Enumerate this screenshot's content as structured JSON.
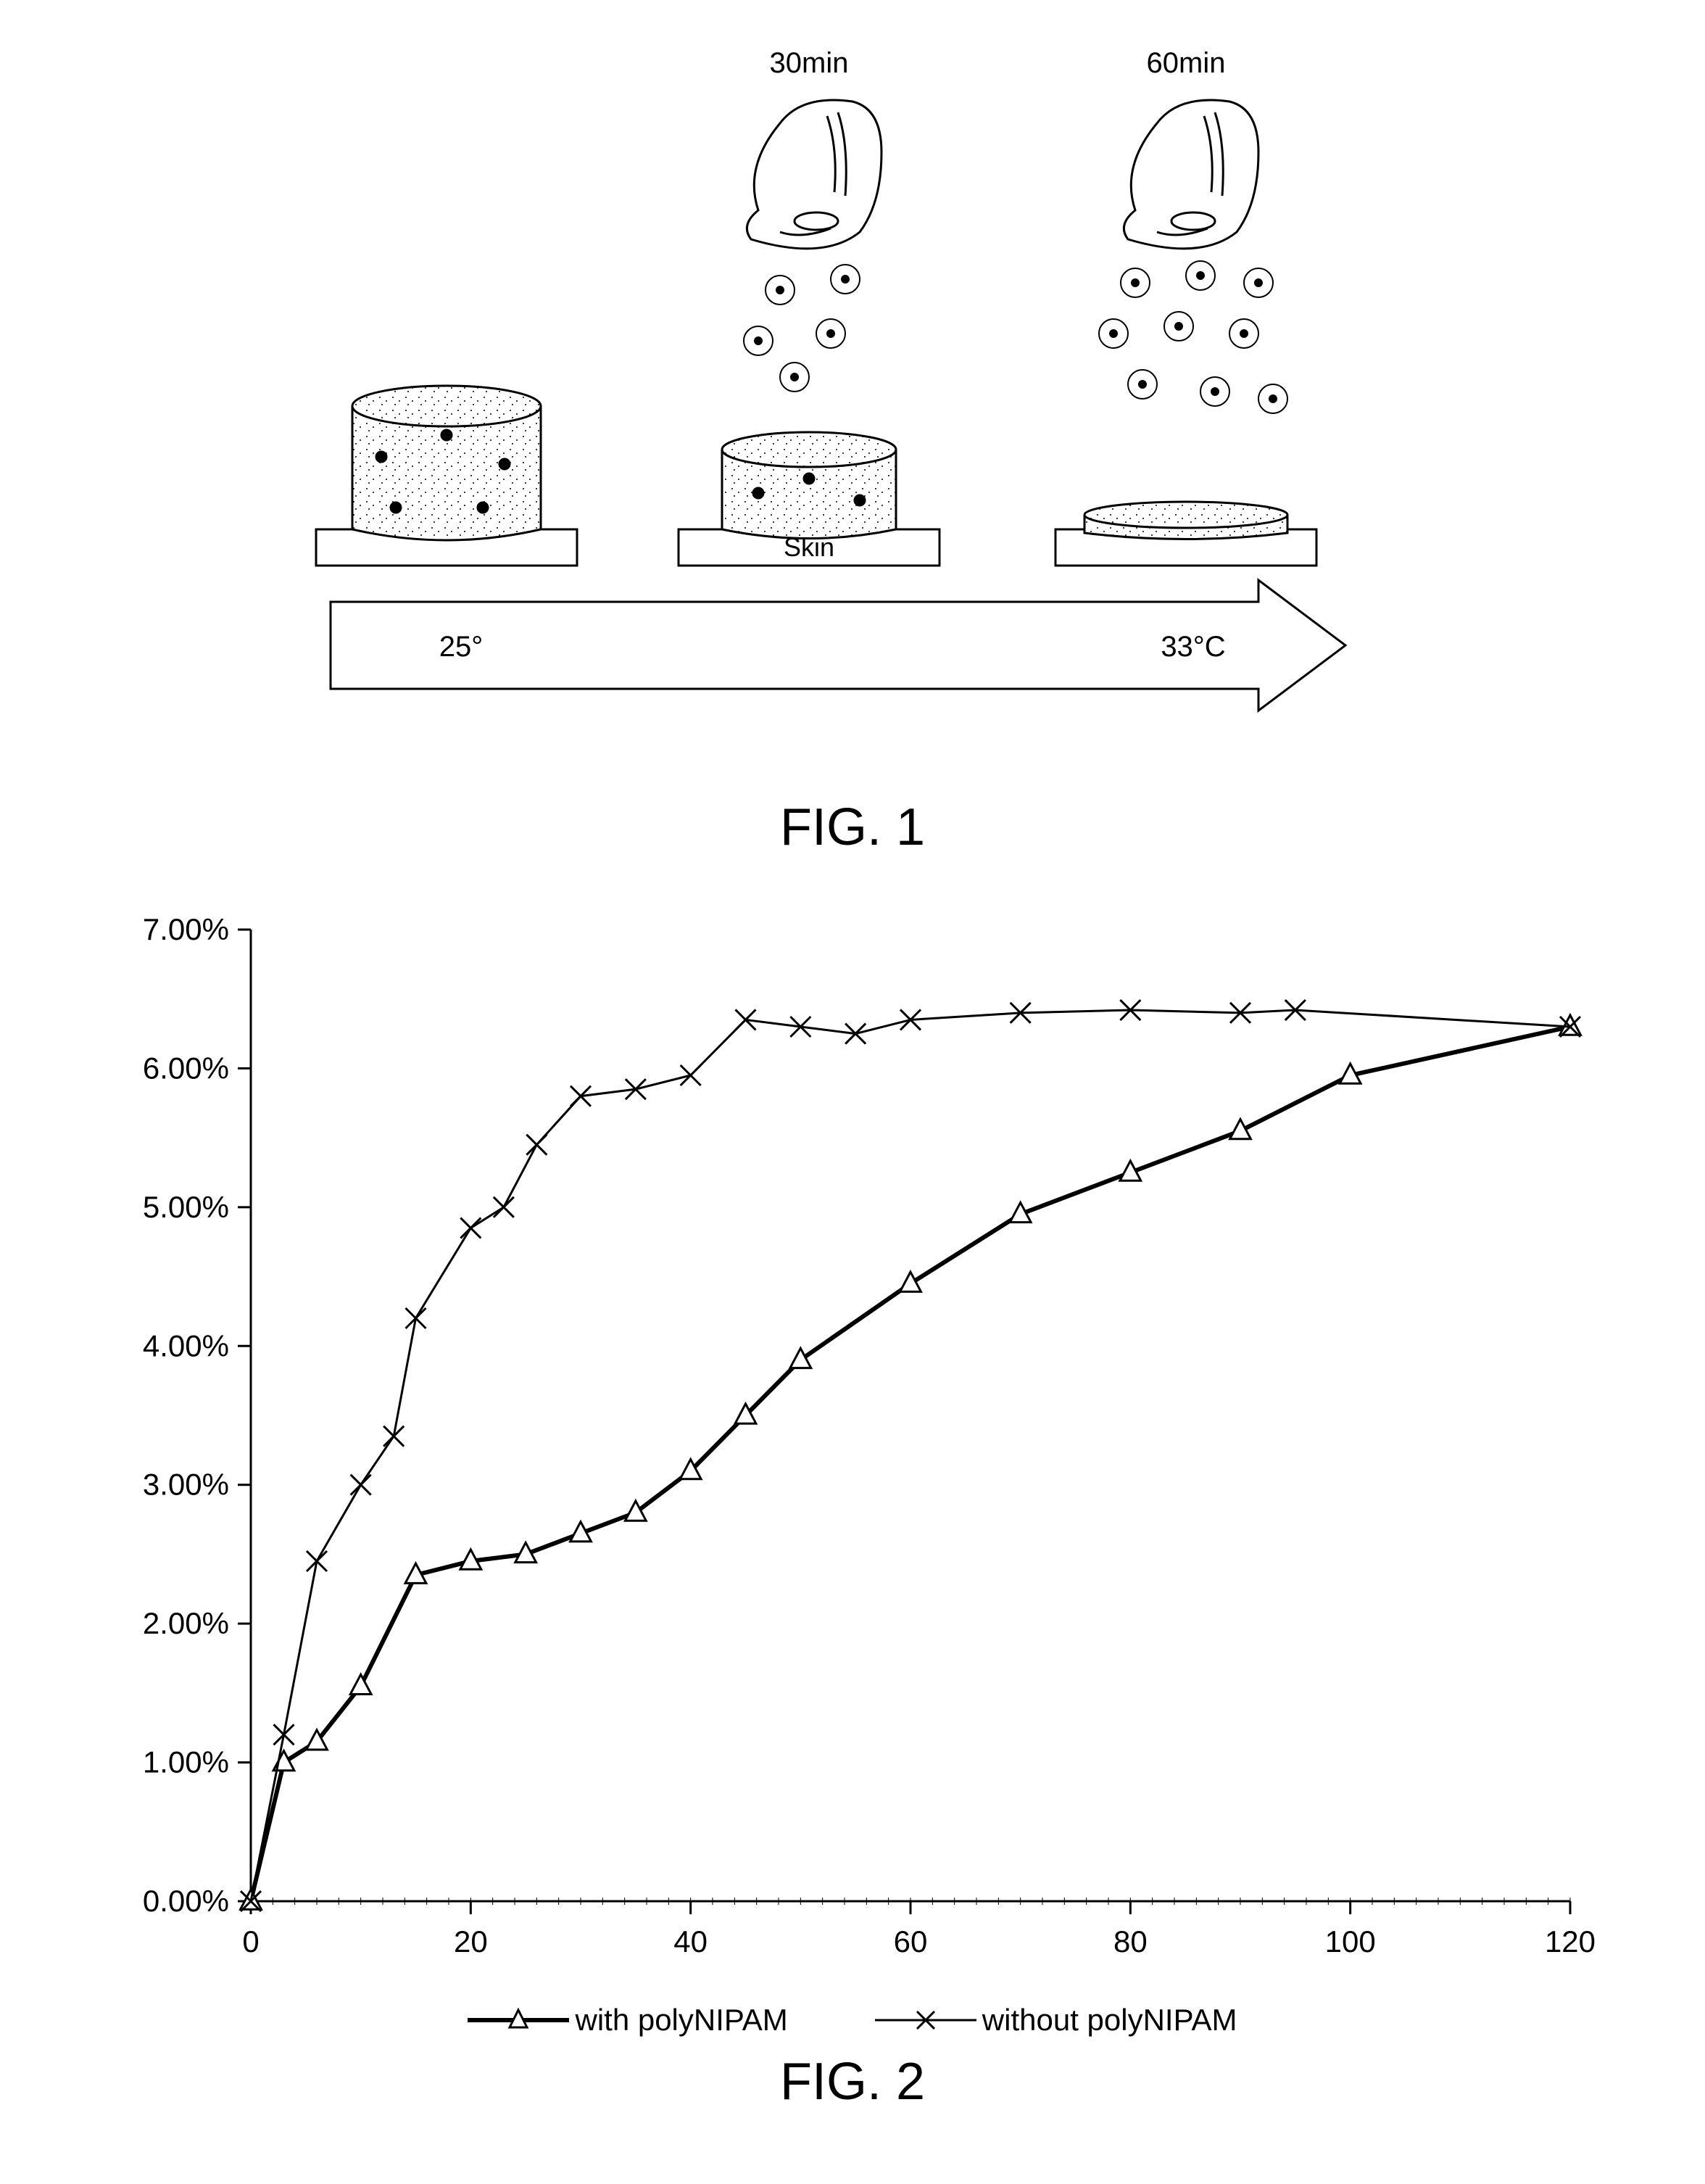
{
  "fig1": {
    "caption": "FIG. 1",
    "time_labels": [
      "30min",
      "60min"
    ],
    "time_fontsize": 40,
    "temp_start": "25°",
    "temp_end": "33°C",
    "temp_fontsize": 40,
    "skin_label": "Skin",
    "skin_fontsize": 36,
    "stroke_color": "#000000",
    "stipple_color": "#000000",
    "bg_color": "#ffffff"
  },
  "fig2": {
    "caption": "FIG. 2",
    "type": "line",
    "xlim": [
      0,
      120
    ],
    "xtick_step": 20,
    "xticks": [
      0,
      20,
      40,
      60,
      80,
      100,
      120
    ],
    "ylim": [
      0,
      7
    ],
    "ytick_step": 1,
    "ylabels": [
      "0.00%",
      "1.00%",
      "2.00%",
      "3.00%",
      "4.00%",
      "5.00%",
      "6.00%",
      "7.00%"
    ],
    "tick_fontsize": 42,
    "axis_color": "#000000",
    "bg_color": "#ffffff",
    "series": [
      {
        "name": "with polyNIPAM",
        "marker": "triangle",
        "line_width": 6,
        "color": "#000000",
        "data": [
          [
            0,
            0.0
          ],
          [
            3,
            1.0
          ],
          [
            6,
            1.15
          ],
          [
            10,
            1.55
          ],
          [
            15,
            2.35
          ],
          [
            20,
            2.45
          ],
          [
            25,
            2.5
          ],
          [
            30,
            2.65
          ],
          [
            35,
            2.8
          ],
          [
            40,
            3.1
          ],
          [
            45,
            3.5
          ],
          [
            50,
            3.9
          ],
          [
            60,
            4.45
          ],
          [
            70,
            4.95
          ],
          [
            80,
            5.25
          ],
          [
            90,
            5.55
          ],
          [
            100,
            5.95
          ],
          [
            120,
            6.3
          ]
        ]
      },
      {
        "name": "without polyNIPAM",
        "marker": "x",
        "line_width": 3,
        "color": "#000000",
        "data": [
          [
            0,
            0.0
          ],
          [
            3,
            1.2
          ],
          [
            6,
            2.45
          ],
          [
            10,
            3.0
          ],
          [
            13,
            3.35
          ],
          [
            15,
            4.2
          ],
          [
            20,
            4.85
          ],
          [
            23,
            5.0
          ],
          [
            26,
            5.45
          ],
          [
            30,
            5.8
          ],
          [
            35,
            5.85
          ],
          [
            40,
            5.95
          ],
          [
            45,
            6.35
          ],
          [
            50,
            6.3
          ],
          [
            55,
            6.25
          ],
          [
            60,
            6.35
          ],
          [
            70,
            6.4
          ],
          [
            80,
            6.42
          ],
          [
            90,
            6.4
          ],
          [
            95,
            6.42
          ],
          [
            120,
            6.3
          ]
        ]
      }
    ],
    "legend": {
      "items": [
        "with polyNIPAM",
        "without polyNIPAM"
      ],
      "fontsize": 42
    }
  },
  "caption_fontsize": 72
}
